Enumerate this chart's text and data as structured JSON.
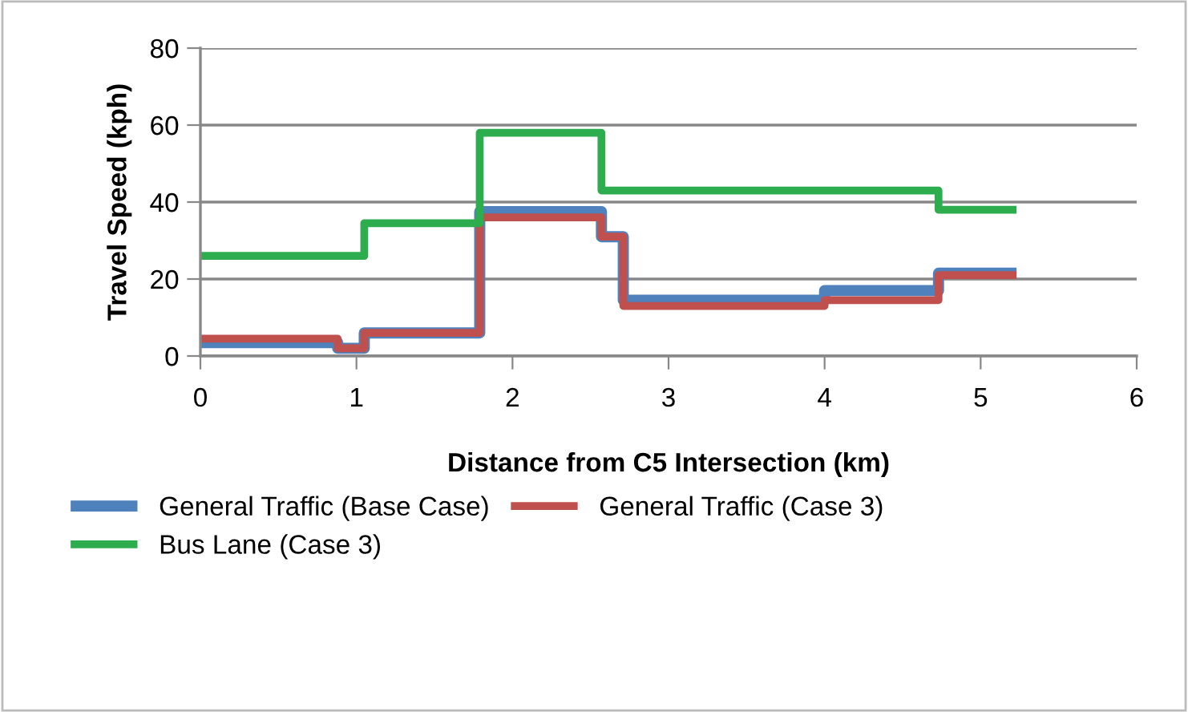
{
  "chart_data": {
    "type": "step",
    "xlabel": "Distance from C5 Intersection (km)",
    "ylabel": "Travel Speed (kph)",
    "xlim": [
      0,
      6
    ],
    "xticks": [
      0,
      1,
      2,
      3,
      4,
      5,
      6
    ],
    "ylim": [
      0,
      80
    ],
    "yticks": [
      0,
      20,
      40,
      60,
      80
    ],
    "grid": "y",
    "legend": "bottom",
    "marker": "none",
    "line_style": "solid",
    "series": [
      {
        "name": "General Traffic (Base Case)",
        "color": "#4f81bd",
        "x": [
          0,
          0.88,
          1.05,
          1.79,
          2.57,
          2.71,
          4.0,
          4.73,
          5.23
        ],
        "values": [
          3.5,
          2,
          6,
          37.5,
          31,
          14.5,
          17,
          21.5,
          21.5
        ]
      },
      {
        "name": "General Traffic (Case 3)",
        "color": "#c0504d",
        "x": [
          0,
          0.88,
          1.05,
          1.79,
          2.57,
          2.71,
          4.0,
          4.73,
          5.23
        ],
        "values": [
          4.5,
          2,
          6,
          36,
          31,
          13,
          14.5,
          21,
          21
        ]
      },
      {
        "name": "Bus Lane (Case 3)",
        "color": "#2ead4f",
        "x": [
          0,
          1.05,
          1.79,
          2.57,
          4.73,
          5.23
        ],
        "values": [
          26,
          34.5,
          58,
          43,
          38,
          38
        ]
      }
    ]
  }
}
